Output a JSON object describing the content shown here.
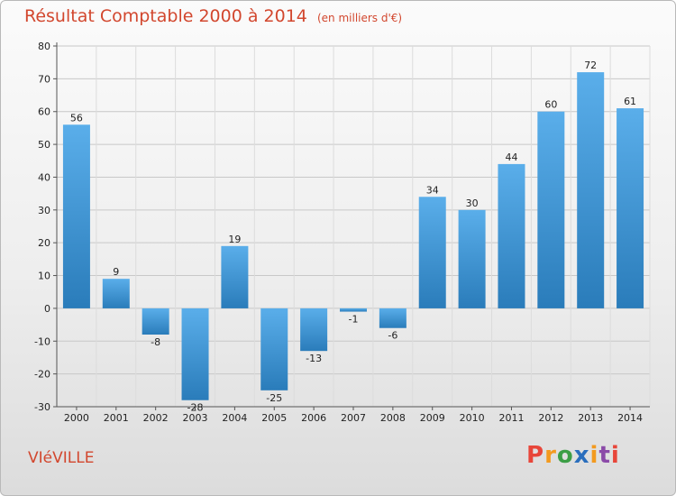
{
  "header": {
    "title": "Résultat Comptable 2000 à 2014",
    "unit": "(en milliers d'€)"
  },
  "footer": {
    "commune": "VIéVILLE",
    "brand": "Proxiti"
  },
  "colors": {
    "title": "#d2472e",
    "bar_light": "#5aaeea",
    "bar_dark": "#2a7cba",
    "logo": [
      "#e8463a",
      "#f39a1f",
      "#3c9e46",
      "#2a6ebd",
      "#f39a1f",
      "#8b4aa8",
      "#e8463a"
    ]
  },
  "chart_data": {
    "type": "bar",
    "title": "Résultat Comptable 2000 à 2014",
    "subtitle": "(en milliers d'€)",
    "xlabel": "",
    "ylabel": "",
    "categories": [
      "2000",
      "2001",
      "2002",
      "2003",
      "2004",
      "2005",
      "2006",
      "2007",
      "2008",
      "2009",
      "2010",
      "2011",
      "2012",
      "2013",
      "2014"
    ],
    "values": [
      56,
      9,
      -8,
      -28,
      19,
      -25,
      -13,
      -1,
      -6,
      34,
      30,
      44,
      60,
      72,
      61
    ],
    "ylim": [
      -30,
      80
    ],
    "yticks": [
      -30,
      -20,
      -10,
      0,
      10,
      20,
      30,
      40,
      50,
      60,
      70,
      80
    ],
    "grid": true
  }
}
